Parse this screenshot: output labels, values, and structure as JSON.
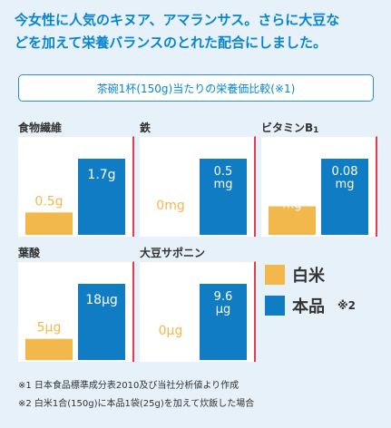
{
  "headline": {
    "line1": "今女性に人気のキヌア、アマランサス。さらに大豆な",
    "line2": "どを加えて栄養バランスのとれた配合にしました。"
  },
  "subtitle": "茶碗1杯(150g)当たりの栄養価比較(※1)",
  "legend": {
    "white_rice": "白米",
    "product": "本品",
    "product_note": "※2"
  },
  "colors": {
    "white_rice": "#f2b84b",
    "product": "#0f7cc4",
    "accent_border": "#e43b54",
    "headline": "#0a85cf"
  },
  "footnotes": [
    "※1 日本食品標準成分表2010及び当社分析値より作成",
    "※2 白米1合(150g)に本品1袋(25g)を加えて炊飯した場合"
  ],
  "chart_data": [
    {
      "type": "bar",
      "title": "食物繊維",
      "categories": [
        "白米",
        "本品"
      ],
      "values": [
        0.5,
        1.7
      ],
      "unit": "g",
      "labels": [
        "0.5g",
        "1.7g"
      ]
    },
    {
      "type": "bar",
      "title": "鉄",
      "categories": [
        "白米",
        "本品"
      ],
      "values": [
        0,
        0.5
      ],
      "unit": "mg",
      "labels": [
        "0mg",
        "0.5 mg"
      ]
    },
    {
      "type": "bar",
      "title": "ビタミンB1",
      "categories": [
        "白米",
        "本品"
      ],
      "values": [
        0.03,
        0.08
      ],
      "unit": "mg",
      "labels": [
        "0.03 mg",
        "0.08 mg"
      ]
    },
    {
      "type": "bar",
      "title": "葉酸",
      "categories": [
        "白米",
        "本品"
      ],
      "values": [
        5,
        18
      ],
      "unit": "μg",
      "labels": [
        "5μg",
        "18μg"
      ]
    },
    {
      "type": "bar",
      "title": "大豆サポニン",
      "categories": [
        "白米",
        "本品"
      ],
      "values": [
        0,
        9.6
      ],
      "unit": "μg",
      "labels": [
        "0μg",
        "9.6 μg"
      ]
    }
  ]
}
